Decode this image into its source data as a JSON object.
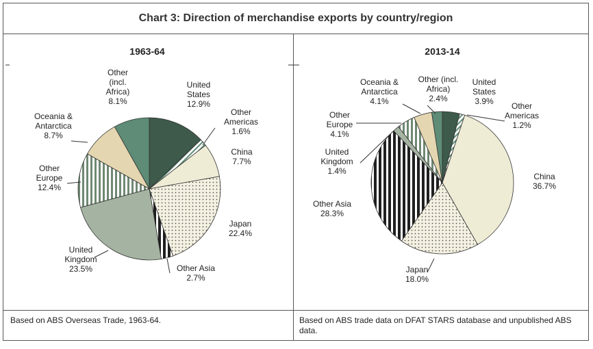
{
  "title": "Chart 3: Direction of merchandise exports by country/region",
  "colors": {
    "dark_green": "#3d5a4a",
    "teal_green": "#5e8c76",
    "beige": "#e3d6b0",
    "cream": "#efecd6",
    "sage": "#a5b4a2",
    "stripe": "#6f8872",
    "dots": "#7a7a6a",
    "black_stripe": "#1f1f1f"
  },
  "chart_data": [
    {
      "type": "pie",
      "title": "1963-64",
      "slices": [
        {
          "name": "United States",
          "value": 12.9,
          "label_lines": [
            "United",
            "States",
            "12.9%"
          ]
        },
        {
          "name": "Other Americas",
          "value": 1.6,
          "label_lines": [
            "Other",
            "Americas",
            "1.6%"
          ]
        },
        {
          "name": "China",
          "value": 7.7,
          "label_lines": [
            "China",
            "7.7%"
          ]
        },
        {
          "name": "Japan",
          "value": 22.4,
          "label_lines": [
            "Japan",
            "22.4%"
          ]
        },
        {
          "name": "Other Asia",
          "value": 2.7,
          "label_lines": [
            "Other Asia",
            "2.7%"
          ]
        },
        {
          "name": "United Kingdom",
          "value": 23.5,
          "label_lines": [
            "United",
            "Kingdom",
            "23.5%"
          ]
        },
        {
          "name": "Other Europe",
          "value": 12.4,
          "label_lines": [
            "Other",
            "Europe",
            "12.4%"
          ]
        },
        {
          "name": "Oceania & Antarctica",
          "value": 8.7,
          "label_lines": [
            "Oceania &",
            "Antarctica",
            "8.7%"
          ]
        },
        {
          "name": "Other (incl. Africa)",
          "value": 8.1,
          "label_lines": [
            "Other",
            "(incl.",
            "Africa)",
            "8.1%"
          ]
        }
      ],
      "footnote": "Based on ABS Overseas Trade, 1963-64."
    },
    {
      "type": "pie",
      "title": "2013-14",
      "slices": [
        {
          "name": "United States",
          "value": 3.9,
          "label_lines": [
            "United",
            "States",
            "3.9%"
          ]
        },
        {
          "name": "Other Americas",
          "value": 1.2,
          "label_lines": [
            "Other",
            "Americas",
            "1.2%"
          ]
        },
        {
          "name": "China",
          "value": 36.7,
          "label_lines": [
            "China",
            "36.7%"
          ]
        },
        {
          "name": "Japan",
          "value": 18.0,
          "label_lines": [
            "Japan",
            "18.0%"
          ]
        },
        {
          "name": "Other Asia",
          "value": 28.3,
          "label_lines": [
            "Other Asia",
            "28.3%"
          ]
        },
        {
          "name": "United Kingdom",
          "value": 1.4,
          "label_lines": [
            "United",
            "Kingdom",
            "1.4%"
          ]
        },
        {
          "name": "Other Europe",
          "value": 4.1,
          "label_lines": [
            "Other",
            "Europe",
            "4.1%"
          ]
        },
        {
          "name": "Oceania & Antarctica",
          "value": 4.1,
          "label_lines": [
            "Oceania &",
            "Antarctica",
            "4.1%"
          ]
        },
        {
          "name": "Other (incl. Africa)",
          "value": 2.4,
          "label_lines": [
            "Other (incl.",
            "Africa)",
            "2.4%"
          ]
        }
      ],
      "footnote": "Based on ABS trade data on DFAT STARS database and unpublished ABS data."
    }
  ]
}
